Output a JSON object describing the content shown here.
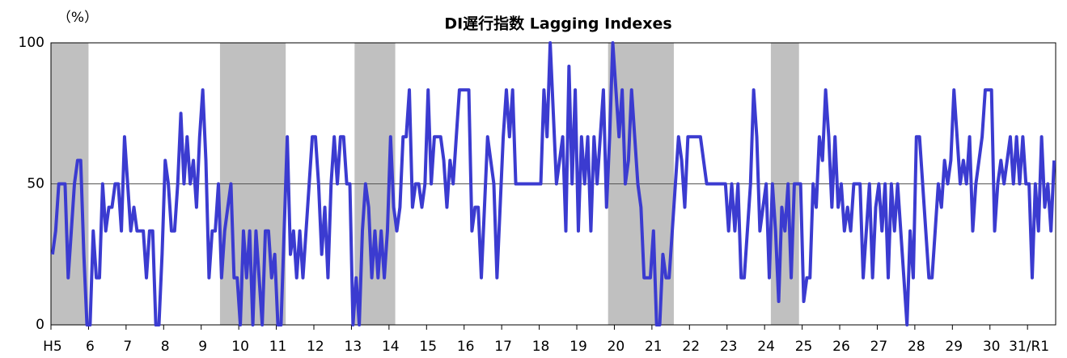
{
  "chart_data": {
    "type": "line",
    "title": "DI遅行指数 Lagging Indexes",
    "y_label": "（%）",
    "categories": [
      "H5",
      null,
      null,
      null,
      null,
      null,
      null,
      null,
      null,
      null,
      null,
      null,
      "6",
      null,
      null,
      null,
      null,
      null,
      null,
      null,
      null,
      null,
      null,
      null,
      "7",
      null,
      null,
      null,
      null,
      null,
      null,
      null,
      null,
      null,
      null,
      null,
      "8",
      null,
      null,
      null,
      null,
      null,
      null,
      null,
      null,
      null,
      null,
      null,
      "9",
      null,
      null,
      null,
      null,
      null,
      null,
      null,
      null,
      null,
      null,
      null,
      "10",
      null,
      null,
      null,
      null,
      null,
      null,
      null,
      null,
      null,
      null,
      null,
      "11",
      null,
      null,
      null,
      null,
      null,
      null,
      null,
      null,
      null,
      null,
      null,
      "12",
      null,
      null,
      null,
      null,
      null,
      null,
      null,
      null,
      null,
      null,
      null,
      "13",
      null,
      null,
      null,
      null,
      null,
      null,
      null,
      null,
      null,
      null,
      null,
      "14",
      null,
      null,
      null,
      null,
      null,
      null,
      null,
      null,
      null,
      null,
      null,
      "15",
      null,
      null,
      null,
      null,
      null,
      null,
      null,
      null,
      null,
      null,
      null,
      "16",
      null,
      null,
      null,
      null,
      null,
      null,
      null,
      null,
      null,
      null,
      null,
      "17",
      null,
      null,
      null,
      null,
      null,
      null,
      null,
      null,
      null,
      null,
      null,
      "18",
      null,
      null,
      null,
      null,
      null,
      null,
      null,
      null,
      null,
      null,
      null,
      "19",
      null,
      null,
      null,
      null,
      null,
      null,
      null,
      null,
      null,
      null,
      null,
      "20",
      null,
      null,
      null,
      null,
      null,
      null,
      null,
      null,
      null,
      null,
      null,
      "21",
      null,
      null,
      null,
      null,
      null,
      null,
      null,
      null,
      null,
      null,
      null,
      "22",
      null,
      null,
      null,
      null,
      null,
      null,
      null,
      null,
      null,
      null,
      null,
      "23",
      null,
      null,
      null,
      null,
      null,
      null,
      null,
      null,
      null,
      null,
      null,
      "24",
      null,
      null,
      null,
      null,
      null,
      null,
      null,
      null,
      null,
      null,
      null,
      "25",
      null,
      null,
      null,
      null,
      null,
      null,
      null,
      null,
      null,
      null,
      null,
      "26",
      null,
      null,
      null,
      null,
      null,
      null,
      null,
      null,
      null,
      null,
      null,
      "27",
      null,
      null,
      null,
      null,
      null,
      null,
      null,
      null,
      null,
      null,
      null,
      "28",
      null,
      null,
      null,
      null,
      null,
      null,
      null,
      null,
      null,
      null,
      null,
      "29",
      null,
      null,
      null,
      null,
      null,
      null,
      null,
      null,
      null,
      null,
      null,
      "30",
      null,
      null,
      null,
      null,
      null,
      null,
      null,
      null,
      null,
      null,
      null,
      "31/R1",
      null,
      null,
      null,
      null,
      null,
      null,
      null,
      null
    ],
    "series": [
      {
        "color": "#3b3bd0",
        "values": [
          25,
          33.3,
          50,
          50,
          50,
          16.7,
          33.3,
          50,
          58.3,
          58.3,
          25,
          0,
          0,
          33.3,
          16.7,
          16.7,
          50,
          33.3,
          41.7,
          41.7,
          50,
          50,
          33.3,
          66.7,
          50,
          33.3,
          41.7,
          33.3,
          33.3,
          33.3,
          16.7,
          33.3,
          33.3,
          0,
          0,
          25,
          58.3,
          50,
          33.3,
          33.3,
          50,
          75,
          50,
          66.7,
          50,
          58.3,
          41.7,
          66.7,
          83.3,
          58.3,
          16.7,
          33.3,
          33.3,
          50,
          16.7,
          33.3,
          41.7,
          50,
          16.7,
          16.7,
          0,
          33.3,
          16.7,
          33.3,
          0,
          33.3,
          16.7,
          0,
          33.3,
          33.3,
          16.7,
          25,
          0,
          0,
          33.3,
          66.7,
          25,
          33.3,
          16.7,
          33.3,
          16.7,
          33.3,
          50,
          66.7,
          66.7,
          50,
          25,
          41.7,
          16.7,
          50,
          66.7,
          50,
          66.7,
          66.7,
          50,
          50,
          0,
          16.7,
          0,
          33.3,
          50,
          41.7,
          16.7,
          33.3,
          16.7,
          33.3,
          16.7,
          33.3,
          66.7,
          41.7,
          33.3,
          41.7,
          66.7,
          66.7,
          83.3,
          41.7,
          50,
          50,
          41.7,
          50,
          83.3,
          50,
          66.7,
          66.7,
          66.7,
          58.3,
          41.7,
          58.3,
          50,
          66.7,
          83.3,
          83.3,
          83.3,
          83.3,
          33.3,
          41.7,
          41.7,
          16.7,
          41.7,
          66.7,
          58.3,
          50,
          16.7,
          41.7,
          66.7,
          83.3,
          66.7,
          83.3,
          50,
          50,
          50,
          50,
          50,
          50,
          50,
          50,
          50,
          83.3,
          66.7,
          100,
          75,
          50,
          58.3,
          66.7,
          33.3,
          91.7,
          50,
          83.3,
          33.3,
          66.7,
          50,
          66.7,
          33.3,
          66.7,
          50,
          66.7,
          83.3,
          41.7,
          66.7,
          100,
          83.3,
          66.7,
          83.3,
          50,
          58.3,
          83.3,
          66.7,
          50,
          41.7,
          16.7,
          16.7,
          16.7,
          33.3,
          0,
          0,
          25,
          16.7,
          16.7,
          33.3,
          50,
          66.7,
          58.3,
          41.7,
          66.7,
          66.7,
          66.7,
          66.7,
          66.7,
          58.3,
          50,
          50,
          50,
          50,
          50,
          50,
          50,
          33.3,
          50,
          33.3,
          50,
          16.7,
          16.7,
          33.3,
          50,
          83.3,
          66.7,
          33.3,
          41.7,
          50,
          16.7,
          50,
          33.3,
          8.3,
          41.7,
          33.3,
          50,
          16.7,
          50,
          50,
          50,
          8.3,
          16.7,
          16.7,
          50,
          41.7,
          66.7,
          58.3,
          83.3,
          66.7,
          41.7,
          66.7,
          41.7,
          50,
          33.3,
          41.7,
          33.3,
          50,
          50,
          50,
          16.7,
          33.3,
          50,
          16.7,
          41.7,
          50,
          33.3,
          50,
          16.7,
          50,
          33.3,
          50,
          33.3,
          16.7,
          0,
          33.3,
          16.7,
          66.7,
          66.7,
          50,
          33.3,
          16.7,
          16.7,
          33.3,
          50,
          41.7,
          58.3,
          50,
          58.3,
          83.3,
          66.7,
          50,
          58.3,
          50,
          66.7,
          33.3,
          50,
          58.3,
          66.7,
          83.3,
          83.3,
          83.3,
          33.3,
          50,
          58.3,
          50,
          58.3,
          66.7,
          50,
          66.7,
          50,
          66.7,
          50,
          50,
          16.7,
          50,
          33.3,
          66.7,
          41.7,
          50,
          33.3,
          58.3
        ]
      }
    ],
    "shaded": [
      [
        0,
        11
      ],
      [
        54,
        74
      ],
      [
        97,
        109
      ],
      [
        178,
        198
      ],
      [
        230,
        238
      ]
    ],
    "shaded_color": "#c0c0c0",
    "ylim": [
      0,
      100
    ],
    "yticks": [
      0,
      50,
      100
    ],
    "grid": true
  }
}
